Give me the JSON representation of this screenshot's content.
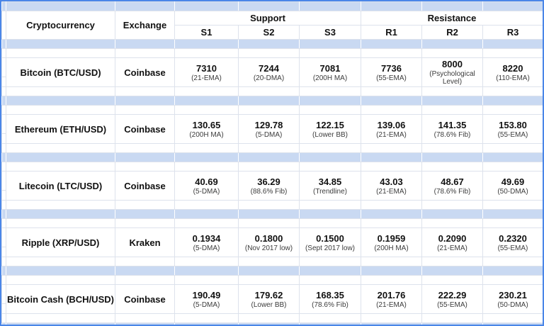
{
  "colors": {
    "frame": "#4a86e8",
    "separator_row": "#c9d9f2",
    "gridline": "#dde2ec",
    "background": "#ffffff",
    "text": "#111111",
    "sublabel_text": "#3c3c3c"
  },
  "header": {
    "cryptocurrency_label": "Cryptocurrency",
    "exchange_label": "Exchange",
    "support_label": "Support",
    "resistance_label": "Resistance",
    "support_columns": [
      "S1",
      "S2",
      "S3"
    ],
    "resistance_columns": [
      "R1",
      "R2",
      "R3"
    ]
  },
  "chart_data": {
    "type": "table",
    "rows": [
      {
        "cryptocurrency": "Bitcoin (BTC/USD)",
        "exchange": "Coinbase",
        "levels": [
          {
            "value": "7310",
            "label": "(21-EMA)"
          },
          {
            "value": "7244",
            "label": "(20-DMA)"
          },
          {
            "value": "7081",
            "label": "(200H MA)"
          },
          {
            "value": "7736",
            "label": "(55-EMA)"
          },
          {
            "value": "8000",
            "label": "(Psychological Level)"
          },
          {
            "value": "8220",
            "label": "(110-EMA)"
          }
        ]
      },
      {
        "cryptocurrency": "Ethereum (ETH/USD)",
        "exchange": "Coinbase",
        "levels": [
          {
            "value": "130.65",
            "label": "(200H MA)"
          },
          {
            "value": "129.78",
            "label": "(5-DMA)"
          },
          {
            "value": "122.15",
            "label": "(Lower BB)"
          },
          {
            "value": "139.06",
            "label": "(21-EMA)"
          },
          {
            "value": "141.35",
            "label": "(78.6% Fib)"
          },
          {
            "value": "153.80",
            "label": "(55-EMA)"
          }
        ]
      },
      {
        "cryptocurrency": "Litecoin (LTC/USD)",
        "exchange": "Coinbase",
        "levels": [
          {
            "value": "40.69",
            "label": "(5-DMA)"
          },
          {
            "value": "36.29",
            "label": "(88.6% Fib)"
          },
          {
            "value": "34.85",
            "label": "(Trendline)"
          },
          {
            "value": "43.03",
            "label": "(21-EMA)"
          },
          {
            "value": "48.67",
            "label": "(78.6% Fib)"
          },
          {
            "value": "49.69",
            "label": "(50-DMA)"
          }
        ]
      },
      {
        "cryptocurrency": "Ripple (XRP/USD)",
        "exchange": "Kraken",
        "levels": [
          {
            "value": "0.1934",
            "label": "(5-DMA)"
          },
          {
            "value": "0.1800",
            "label": "(Nov 2017 low)"
          },
          {
            "value": "0.1500",
            "label": "(Sept 2017 low)"
          },
          {
            "value": "0.1959",
            "label": "(200H MA)"
          },
          {
            "value": "0.2090",
            "label": "(21-EMA)"
          },
          {
            "value": "0.2320",
            "label": "(55-EMA)"
          }
        ]
      },
      {
        "cryptocurrency": "Bitcoin Cash (BCH/USD)",
        "exchange": "Coinbase",
        "levels": [
          {
            "value": "190.49",
            "label": "(5-DMA)"
          },
          {
            "value": "179.62",
            "label": "(Lower BB)"
          },
          {
            "value": "168.35",
            "label": "(78.6% Fib)"
          },
          {
            "value": "201.76",
            "label": "(21-EMA)"
          },
          {
            "value": "222.29",
            "label": "(55-EMA)"
          },
          {
            "value": "230.21",
            "label": "(50-DMA)"
          }
        ]
      }
    ]
  }
}
